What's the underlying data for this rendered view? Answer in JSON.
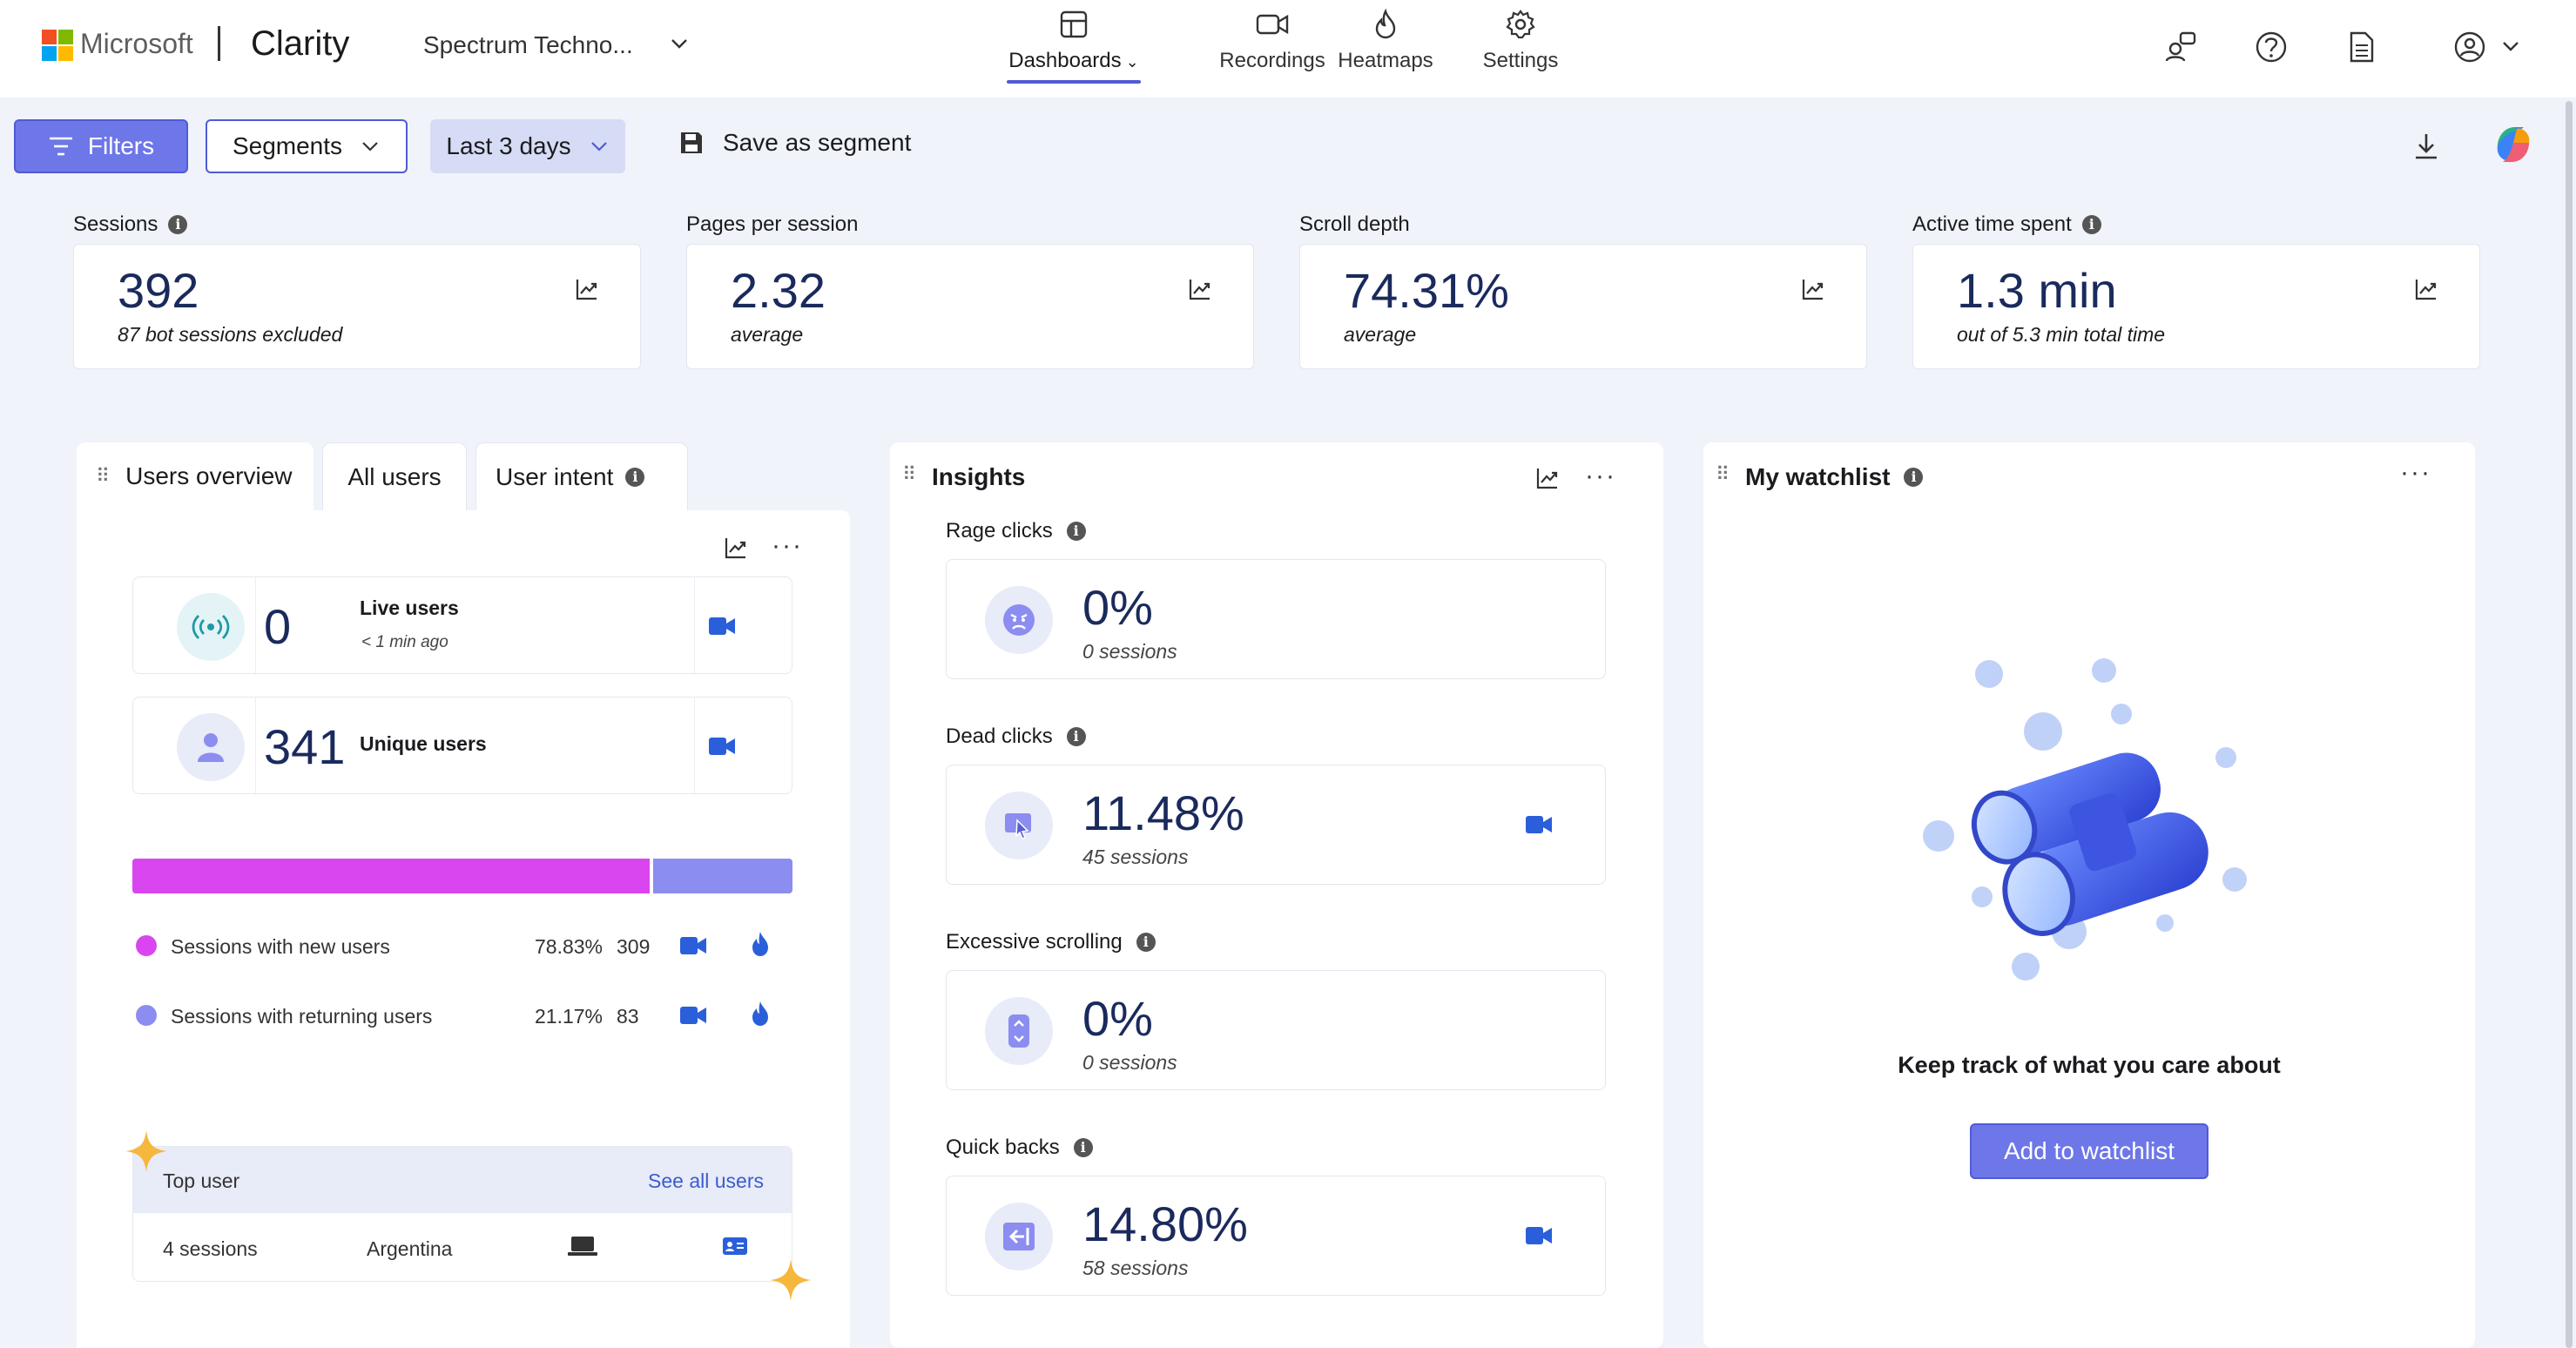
{
  "brand": {
    "company": "Microsoft",
    "product": "Clarity",
    "project": "Spectrum Techno..."
  },
  "nav": [
    {
      "label": "Dashboards",
      "icon": "dashboard-icon",
      "active": true
    },
    {
      "label": "Recordings",
      "icon": "video-camera-icon",
      "active": false
    },
    {
      "label": "Heatmaps",
      "icon": "flame-icon",
      "active": false
    },
    {
      "label": "Settings",
      "icon": "gear-icon",
      "active": false
    }
  ],
  "toolbar": {
    "filters": "Filters",
    "segments": "Segments",
    "date_range": "Last 3 days",
    "save_segment": "Save as segment"
  },
  "kpis": [
    {
      "label": "Sessions",
      "value": "392",
      "sub": "87 bot sessions excluded",
      "has_info": true
    },
    {
      "label": "Pages per session",
      "value": "2.32",
      "sub": "average",
      "has_info": false
    },
    {
      "label": "Scroll depth",
      "value": "74.31%",
      "sub": "average",
      "has_info": false
    },
    {
      "label": "Active time spent",
      "value": "1.3 min",
      "sub": "out of 5.3 min total time",
      "has_info": true
    }
  ],
  "users_panel": {
    "tabs": [
      "Users overview",
      "All users",
      "User intent"
    ],
    "live": {
      "value": "0",
      "label": "Live users",
      "sub": "< 1 min ago"
    },
    "unique": {
      "value": "341",
      "label": "Unique users"
    },
    "split": {
      "new_fraction": 0.7883
    },
    "rows": [
      {
        "label": "Sessions with new users",
        "percent": "78.83%",
        "count": "309",
        "color": "#d946ef"
      },
      {
        "label": "Sessions with returning users",
        "percent": "21.17%",
        "count": "83",
        "color": "#8b8df0"
      }
    ],
    "top_user": {
      "title": "Top user",
      "link": "See all users",
      "sessions": "4 sessions",
      "country": "Argentina"
    }
  },
  "insights": {
    "title": "Insights",
    "items": [
      {
        "label": "Rage clicks",
        "value": "0%",
        "sub": "0 sessions",
        "icon": "angry-face-icon",
        "has_cam": false
      },
      {
        "label": "Dead clicks",
        "value": "11.48%",
        "sub": "45 sessions",
        "icon": "cursor-click-icon",
        "has_cam": true
      },
      {
        "label": "Excessive scrolling",
        "value": "0%",
        "sub": "0 sessions",
        "icon": "scroll-icon",
        "has_cam": false
      },
      {
        "label": "Quick backs",
        "value": "14.80%",
        "sub": "58 sessions",
        "icon": "back-arrow-icon",
        "has_cam": true
      }
    ]
  },
  "watchlist": {
    "title": "My watchlist",
    "message": "Keep track of what you care about",
    "button": "Add to watchlist"
  },
  "colors": {
    "accent": "#6d77e8",
    "new_users": "#d946ef",
    "returning_users": "#8b8df0",
    "value_text": "#1a2a5c",
    "camera": "#2b5fd9"
  }
}
